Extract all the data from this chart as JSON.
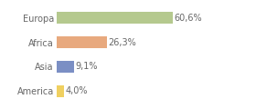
{
  "categories": [
    "Europa",
    "Africa",
    "Asia",
    "America"
  ],
  "values": [
    60.6,
    26.3,
    9.1,
    4.0
  ],
  "labels": [
    "60,6%",
    "26,3%",
    "9,1%",
    "4,0%"
  ],
  "bar_colors": [
    "#b5c98e",
    "#e8a97e",
    "#7b8fc4",
    "#f0d060"
  ],
  "background_color": "#ffffff",
  "xlim": [
    0,
    80
  ],
  "bar_height": 0.5,
  "label_fontsize": 7,
  "tick_fontsize": 7,
  "grid_color": "#dddddd"
}
